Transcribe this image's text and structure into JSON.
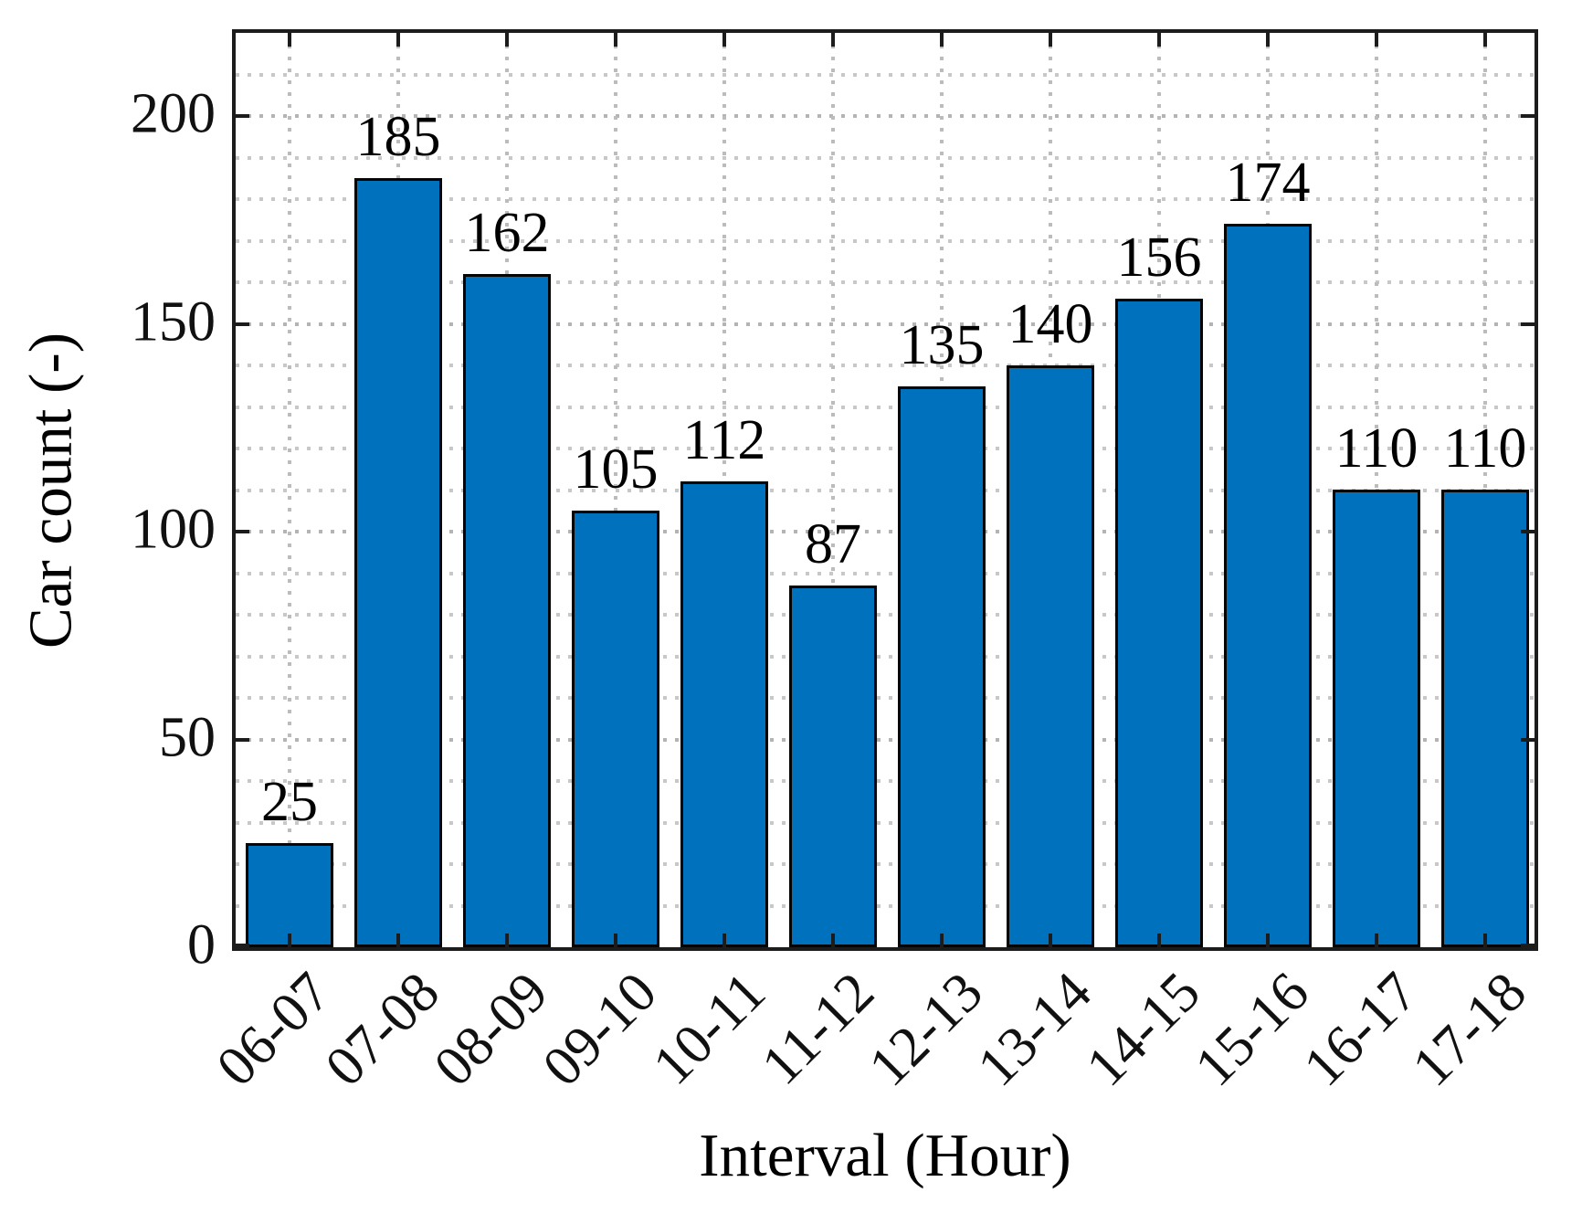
{
  "chart_data": {
    "type": "bar",
    "title": "",
    "xlabel": "Interval (Hour)",
    "ylabel": "Car count (-)",
    "categories": [
      "06-07",
      "07-08",
      "08-09",
      "09-10",
      "10-11",
      "11-12",
      "12-13",
      "13-14",
      "14-15",
      "15-16",
      "16-17",
      "17-18"
    ],
    "values": [
      25,
      185,
      162,
      105,
      112,
      87,
      135,
      140,
      156,
      174,
      110,
      110
    ],
    "bar_value_labels": [
      "25",
      "185",
      "162",
      "105",
      "112",
      "87",
      "135",
      "140",
      "156",
      "174",
      "110",
      "110"
    ],
    "ylim": [
      0,
      220
    ],
    "yticks": [
      0,
      50,
      100,
      150,
      200
    ],
    "ytick_labels": [
      "0",
      "50",
      "100",
      "150",
      "200"
    ],
    "y_minor_grid_step": 10,
    "x_grid": "vertical dotted line at each category center",
    "grid_style": "dotted",
    "legend": null,
    "bar_width_fraction": 0.8,
    "colors": {
      "bar_fill": "#0072BD",
      "bar_edge": "#000000",
      "axis_box": "#1c1c1c",
      "grid_major": "#b4b4b4",
      "grid_minor": "#c8c8c8",
      "text": "#000000",
      "background": "#ffffff"
    }
  }
}
